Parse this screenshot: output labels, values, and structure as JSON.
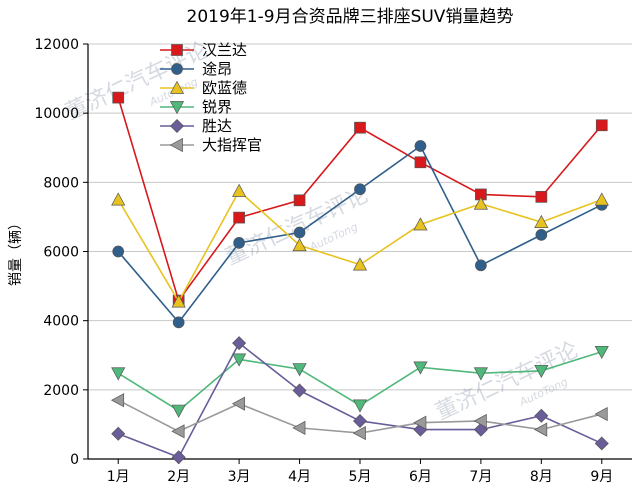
{
  "chart_data": {
    "type": "line",
    "title": "2019年1-9月合资品牌三排座SUV销量趋势",
    "xlabel": "",
    "ylabel": "销量（辆）",
    "categories": [
      "1月",
      "2月",
      "3月",
      "4月",
      "5月",
      "6月",
      "7月",
      "8月",
      "9月"
    ],
    "ylim": [
      0,
      12000
    ],
    "yticks": [
      0,
      2000,
      4000,
      6000,
      8000,
      10000,
      12000
    ],
    "ytick_labels": [
      "0",
      "2000",
      "4000",
      "6000",
      "8000",
      "10000",
      "12000"
    ],
    "grid": true,
    "legend_position": "top-left",
    "series": [
      {
        "name": "汉兰达",
        "color": "#d7191c",
        "marker": "square",
        "values": [
          10450,
          4580,
          6980,
          7480,
          9580,
          8580,
          7650,
          7580,
          9650
        ]
      },
      {
        "name": "途昂",
        "color": "#2f5f8a",
        "marker": "circle",
        "values": [
          6000,
          3950,
          6250,
          6550,
          7800,
          9050,
          5600,
          6480,
          7350
        ]
      },
      {
        "name": "欧蓝德",
        "color": "#e8c320",
        "marker": "triangle-up",
        "values": [
          7500,
          4550,
          7750,
          6180,
          5620,
          6780,
          7380,
          6850,
          7500
        ]
      },
      {
        "name": "锐界",
        "color": "#4fb87a",
        "marker": "triangle-down",
        "values": [
          2480,
          1400,
          2880,
          2600,
          1550,
          2650,
          2480,
          2550,
          3100
        ]
      },
      {
        "name": "胜达",
        "color": "#6a5d9a",
        "marker": "diamond",
        "values": [
          730,
          50,
          3350,
          1980,
          1100,
          850,
          850,
          1250,
          450
        ]
      },
      {
        "name": "大指挥官",
        "color": "#9a9a9a",
        "marker": "triangle-left",
        "values": [
          1700,
          800,
          1600,
          900,
          750,
          1050,
          1100,
          850,
          1300
        ]
      }
    ]
  },
  "watermark": {
    "text": "董济仁汽车评论",
    "subtext": "AutoTong"
  }
}
